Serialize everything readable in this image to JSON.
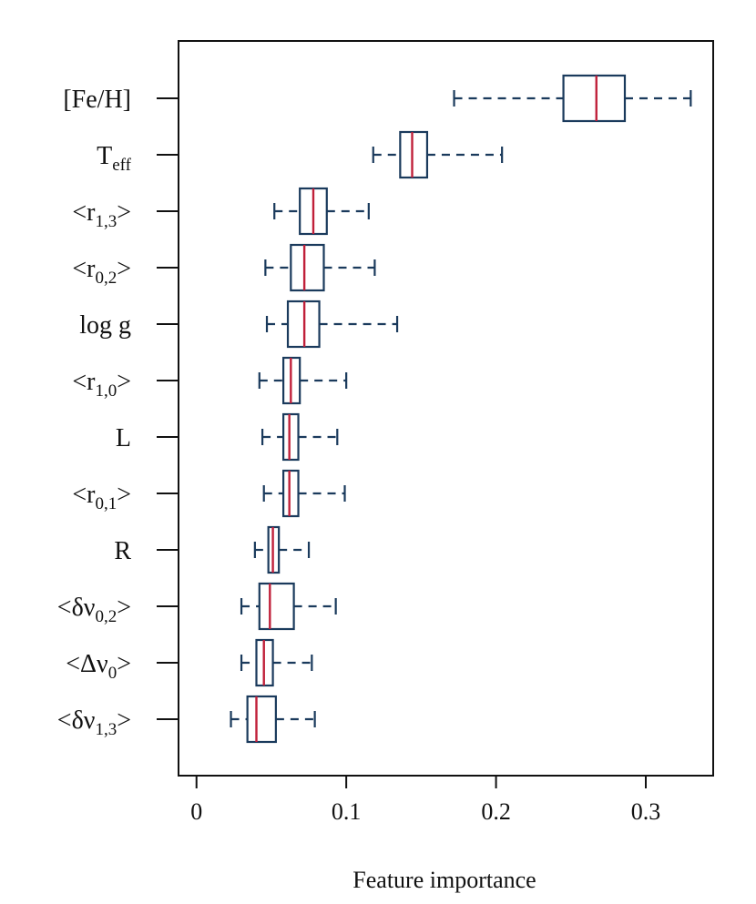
{
  "chart_data": {
    "type": "boxplot",
    "title": "",
    "xlabel": "Feature importance",
    "ylabel": "",
    "xlim": [
      -0.012,
      0.345
    ],
    "xticks": [
      0,
      0.1,
      0.2,
      0.3
    ],
    "xtick_labels": [
      "0",
      "0.1",
      "0.2",
      "0.3"
    ],
    "grid": false,
    "colors": {
      "box": "#1a3a5c",
      "median": "#c0203a",
      "axis": "#111111"
    },
    "features": [
      {
        "label": "[Fe/H]",
        "label_parts": [
          {
            "t": "[Fe/H]"
          }
        ],
        "whisker_low": 0.172,
        "q1": 0.245,
        "median": 0.267,
        "q3": 0.286,
        "whisker_high": 0.33
      },
      {
        "label": "Teff",
        "label_parts": [
          {
            "t": "T"
          },
          {
            "t": "eff",
            "sub": true
          }
        ],
        "whisker_low": 0.118,
        "q1": 0.136,
        "median": 0.144,
        "q3": 0.154,
        "whisker_high": 0.204
      },
      {
        "label": "<r1,3>",
        "label_parts": [
          {
            "t": "<r"
          },
          {
            "t": "1,3",
            "sub": true
          },
          {
            "t": ">"
          }
        ],
        "whisker_low": 0.052,
        "q1": 0.069,
        "median": 0.078,
        "q3": 0.087,
        "whisker_high": 0.115
      },
      {
        "label": "<r0,2>",
        "label_parts": [
          {
            "t": "<r"
          },
          {
            "t": "0,2",
            "sub": true
          },
          {
            "t": ">"
          }
        ],
        "whisker_low": 0.046,
        "q1": 0.063,
        "median": 0.072,
        "q3": 0.085,
        "whisker_high": 0.119
      },
      {
        "label": "log  g",
        "label_parts": [
          {
            "t": "log  g"
          }
        ],
        "whisker_low": 0.047,
        "q1": 0.061,
        "median": 0.072,
        "q3": 0.082,
        "whisker_high": 0.134
      },
      {
        "label": "<r1,0>",
        "label_parts": [
          {
            "t": "<r"
          },
          {
            "t": "1,0",
            "sub": true
          },
          {
            "t": ">"
          }
        ],
        "whisker_low": 0.042,
        "q1": 0.058,
        "median": 0.063,
        "q3": 0.069,
        "whisker_high": 0.1
      },
      {
        "label": "L",
        "label_parts": [
          {
            "t": "L"
          }
        ],
        "whisker_low": 0.044,
        "q1": 0.058,
        "median": 0.062,
        "q3": 0.068,
        "whisker_high": 0.094
      },
      {
        "label": "<r0,1>",
        "label_parts": [
          {
            "t": "<r"
          },
          {
            "t": "0,1",
            "sub": true
          },
          {
            "t": ">"
          }
        ],
        "whisker_low": 0.045,
        "q1": 0.058,
        "median": 0.062,
        "q3": 0.068,
        "whisker_high": 0.099
      },
      {
        "label": "R",
        "label_parts": [
          {
            "t": "R"
          }
        ],
        "whisker_low": 0.039,
        "q1": 0.048,
        "median": 0.051,
        "q3": 0.055,
        "whisker_high": 0.075
      },
      {
        "label": "<δν0,2>",
        "label_parts": [
          {
            "t": "<δν"
          },
          {
            "t": "0,2",
            "sub": true
          },
          {
            "t": ">"
          }
        ],
        "whisker_low": 0.03,
        "q1": 0.042,
        "median": 0.049,
        "q3": 0.065,
        "whisker_high": 0.093
      },
      {
        "label": "<Δν0>",
        "label_parts": [
          {
            "t": "<Δν"
          },
          {
            "t": "0",
            "sub": true
          },
          {
            "t": ">"
          }
        ],
        "whisker_low": 0.03,
        "q1": 0.04,
        "median": 0.045,
        "q3": 0.051,
        "whisker_high": 0.077
      },
      {
        "label": "<δν1,3>",
        "label_parts": [
          {
            "t": "<δν"
          },
          {
            "t": "1,3",
            "sub": true
          },
          {
            "t": ">"
          }
        ],
        "whisker_low": 0.023,
        "q1": 0.034,
        "median": 0.04,
        "q3": 0.053,
        "whisker_high": 0.079
      }
    ]
  }
}
